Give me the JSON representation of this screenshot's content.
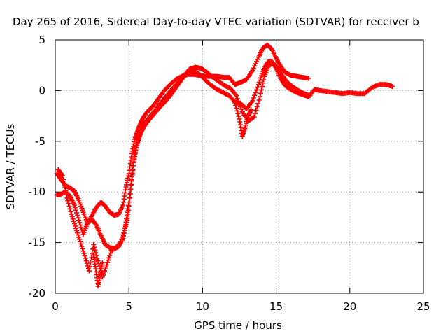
{
  "chart_data": {
    "type": "scatter",
    "title": "Day 265 of 2016, Sidereal Day-to-day VTEC variation (SDTVAR) for receiver b",
    "xlabel": "GPS time / hours",
    "ylabel": "SDTVAR / TECUs",
    "xlim": [
      0,
      25
    ],
    "ylim": [
      -20,
      5
    ],
    "x_ticks": [
      0,
      5,
      10,
      15,
      20,
      25
    ],
    "y_ticks": [
      -20,
      -15,
      -10,
      -5,
      0,
      5
    ],
    "x_tick_labels": [
      "0",
      "5",
      "10",
      "15",
      "20",
      "25"
    ],
    "y_tick_labels": [
      "-20",
      "-15",
      "-10",
      "-5",
      "0",
      "5"
    ],
    "grid": true,
    "marker": "plus",
    "series_color": "#ff0000",
    "series": [
      {
        "x": [
          0.1,
          0.4,
          0.7,
          1.0,
          1.3,
          1.6,
          1.9,
          2.2,
          2.5,
          2.8,
          3.1,
          3.4,
          3.7,
          4.0,
          4.3,
          4.6,
          4.8,
          5.0,
          5.2,
          5.4,
          5.6,
          5.8,
          6.0,
          6.3,
          6.6,
          7.0,
          7.4,
          7.8,
          8.2,
          8.6,
          9.0,
          9.4,
          9.8,
          10.2,
          10.6,
          11.0,
          11.4,
          11.8,
          12.2,
          12.6,
          13.0,
          13.4,
          13.8,
          14.1,
          14.4,
          14.7,
          15.0,
          15.3,
          15.6,
          16.0,
          16.4,
          16.8,
          17.2
        ],
        "y": [
          -8.2,
          -8.8,
          -9.4,
          -9.6,
          -9.9,
          -10.8,
          -12.0,
          -13.1,
          -12.3,
          -11.5,
          -11.0,
          -11.4,
          -12.0,
          -12.3,
          -12.2,
          -11.3,
          -9.5,
          -8.2,
          -6.2,
          -4.8,
          -3.9,
          -3.2,
          -2.6,
          -2.0,
          -1.6,
          -0.8,
          0.0,
          0.6,
          1.1,
          1.4,
          1.6,
          1.6,
          1.5,
          1.4,
          1.4,
          1.4,
          1.3,
          1.3,
          0.6,
          0.8,
          1.1,
          2.0,
          3.3,
          4.2,
          4.5,
          4.1,
          3.2,
          2.4,
          1.8,
          1.5,
          1.4,
          1.3,
          1.2
        ]
      },
      {
        "x": [
          0.1,
          0.4,
          0.7,
          1.0,
          1.3,
          1.6,
          1.9,
          2.2,
          2.5,
          2.8,
          3.1,
          3.4,
          3.7,
          4.0,
          4.3,
          4.6,
          4.8,
          5.0,
          5.2,
          5.4,
          5.6,
          5.8,
          6.0,
          6.3,
          6.6,
          7.0,
          7.4,
          7.8,
          8.2,
          8.6,
          9.0,
          9.4,
          9.8,
          10.2,
          10.6,
          11.0,
          11.4,
          11.8,
          12.2,
          12.6,
          13.0,
          13.4,
          13.8,
          14.1,
          14.4,
          14.7,
          15.0,
          15.3,
          15.6,
          16.0,
          16.4,
          16.8,
          17.2,
          17.6,
          18.0,
          18.5,
          19.0,
          19.5,
          20.0,
          20.5,
          21.0,
          21.5,
          22.0,
          22.5,
          22.9
        ],
        "y": [
          -10.3,
          -10.2,
          -10.0,
          -10.4,
          -11.3,
          -12.8,
          -14.2,
          -13.0,
          -12.7,
          -13.3,
          -14.3,
          -15.2,
          -15.5,
          -15.6,
          -15.4,
          -14.6,
          -13.0,
          -11.0,
          -8.5,
          -6.3,
          -5.0,
          -4.2,
          -3.6,
          -3.0,
          -2.5,
          -1.8,
          -1.2,
          -0.5,
          0.3,
          1.1,
          1.8,
          2.0,
          1.6,
          1.0,
          0.5,
          0.1,
          -0.2,
          -0.5,
          -1.1,
          -1.3,
          -1.8,
          -1.0,
          0.6,
          1.9,
          2.8,
          2.9,
          2.2,
          1.2,
          0.5,
          0.1,
          -0.2,
          -0.4,
          -0.6,
          0.1,
          0.0,
          -0.1,
          -0.2,
          -0.3,
          -0.2,
          -0.3,
          -0.3,
          0.3,
          0.6,
          0.6,
          0.4
        ]
      },
      {
        "x": [
          0.2,
          0.5,
          0.8,
          1.1,
          1.4,
          1.7,
          2.0,
          2.3,
          2.6,
          2.9,
          3.2,
          3.5,
          3.8,
          4.1,
          4.4,
          4.7,
          4.9,
          5.1,
          5.3,
          5.5,
          5.7,
          5.9,
          6.1,
          6.4,
          6.7,
          7.1,
          7.5,
          7.9,
          8.3,
          8.7,
          9.1,
          9.5,
          9.9,
          10.3,
          10.7,
          11.1,
          11.5,
          11.9,
          12.3,
          12.7,
          13.1,
          13.5,
          13.9,
          14.2,
          14.5,
          14.8,
          15.1,
          15.4,
          15.7,
          16.1,
          16.5,
          16.9,
          17.3
        ],
        "y": [
          -7.8,
          -8.4,
          -10.6,
          -12.2,
          -13.6,
          -14.9,
          -16.3,
          -17.8,
          -15.2,
          -16.8,
          -18.4,
          -17.2,
          -15.8,
          -15.5,
          -15.1,
          -13.8,
          -12.6,
          -10.2,
          -7.4,
          -5.6,
          -4.6,
          -3.8,
          -3.2,
          -2.6,
          -2.1,
          -1.3,
          -0.6,
          0.1,
          0.7,
          1.4,
          2.1,
          2.3,
          2.2,
          1.8,
          1.3,
          0.9,
          0.5,
          0.2,
          -0.5,
          -2.1,
          -3.0,
          -2.6,
          -0.6,
          1.4,
          2.5,
          2.7,
          2.2,
          1.5,
          0.9,
          0.4,
          0.0,
          -0.3,
          -0.5
        ]
      },
      {
        "x": [
          12.2,
          12.5,
          12.7,
          12.9,
          13.1,
          13.3
        ],
        "y": [
          -1.2,
          -2.8,
          -4.5,
          -3.6,
          -2.5,
          -1.9
        ]
      },
      {
        "x": [
          2.6,
          2.75,
          2.9,
          3.05,
          3.2
        ],
        "y": [
          -16.2,
          -17.6,
          -19.3,
          -18.2,
          -17.0
        ]
      }
    ]
  }
}
